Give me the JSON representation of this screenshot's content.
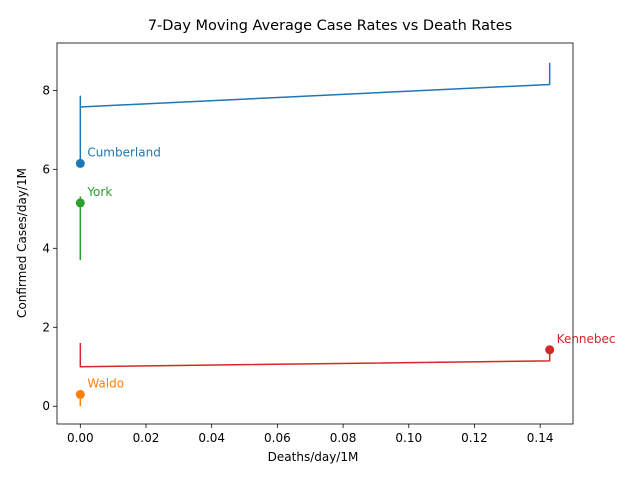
{
  "chart_data": {
    "type": "line",
    "title": "7-Day Moving Average Case Rates vs Death Rates",
    "xlabel": "Deaths/day/1M",
    "ylabel": "Confirmed Cases/day/1M",
    "xlim": [
      -0.0071,
      0.15
    ],
    "ylim": [
      -0.45,
      9.2
    ],
    "x_ticks": [
      {
        "value": 0.0,
        "label": "0.00"
      },
      {
        "value": 0.02,
        "label": "0.02"
      },
      {
        "value": 0.04,
        "label": "0.04"
      },
      {
        "value": 0.06,
        "label": "0.06"
      },
      {
        "value": 0.08,
        "label": "0.08"
      },
      {
        "value": 0.1,
        "label": "0.10"
      },
      {
        "value": 0.12,
        "label": "0.12"
      },
      {
        "value": 0.14,
        "label": "0.14"
      }
    ],
    "y_ticks": [
      {
        "value": 0,
        "label": "0"
      },
      {
        "value": 2,
        "label": "2"
      },
      {
        "value": 4,
        "label": "4"
      },
      {
        "value": 6,
        "label": "6"
      },
      {
        "value": 8,
        "label": "8"
      }
    ],
    "grid": false,
    "series": [
      {
        "name": "Cumberland",
        "color": "#1f77b4",
        "points": [
          {
            "x": 0.1429,
            "y": 8.7
          },
          {
            "x": 0.1429,
            "y": 8.15
          },
          {
            "x": 0.0,
            "y": 7.58
          },
          {
            "x": 0.0,
            "y": 7.85
          },
          {
            "x": 0.0,
            "y": 7.2
          },
          {
            "x": 0.0,
            "y": 6.65
          },
          {
            "x": 0.0,
            "y": 7.0
          },
          {
            "x": 0.0,
            "y": 6.15
          }
        ]
      },
      {
        "name": "Waldo",
        "color": "#ff7f0e",
        "points": [
          {
            "x": 0.0,
            "y": 0.0
          },
          {
            "x": 0.0,
            "y": 0.3
          }
        ]
      },
      {
        "name": "York",
        "color": "#2ca02c",
        "points": [
          {
            "x": 0.0,
            "y": 3.7
          },
          {
            "x": 0.0,
            "y": 5.3
          },
          {
            "x": 0.0,
            "y": 5.15
          }
        ]
      },
      {
        "name": "Kennebec",
        "color": "#d62728",
        "points": [
          {
            "x": 0.0,
            "y": 1.6
          },
          {
            "x": 0.0,
            "y": 1.0
          },
          {
            "x": 0.1429,
            "y": 1.15
          },
          {
            "x": 0.1429,
            "y": 1.43
          }
        ]
      }
    ]
  }
}
